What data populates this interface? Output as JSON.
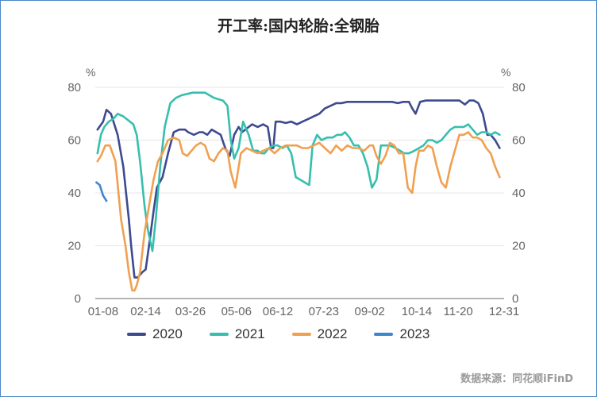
{
  "colors": {
    "2020": "#3d4a8f",
    "2021": "#36bfae",
    "2022": "#f0a050",
    "2023": "#3f86d0",
    "grid": "#e6e6e6",
    "axis": "#888888"
  },
  "source_text": "数据来源：同花顺iFinD",
  "chart_data": {
    "type": "line",
    "title": "开工率:国内轮胎:全钢胎",
    "y_unit_left": "%",
    "y_unit_right": "%",
    "ylim": [
      0,
      80
    ],
    "y_ticks": [
      0,
      20,
      40,
      60,
      80
    ],
    "x_range_days": [
      0,
      365
    ],
    "x_ticks": [
      {
        "label": "01-08",
        "day": 7
      },
      {
        "label": "02-14",
        "day": 45
      },
      {
        "label": "03-26",
        "day": 85
      },
      {
        "label": "05-06",
        "day": 126
      },
      {
        "label": "06-12",
        "day": 163
      },
      {
        "label": "07-23",
        "day": 204
      },
      {
        "label": "09-02",
        "day": 245
      },
      {
        "label": "10-14",
        "day": 287
      },
      {
        "label": "11-20",
        "day": 324
      },
      {
        "label": "12-31",
        "day": 365
      }
    ],
    "grid": true,
    "legend_position": "bottom",
    "series": [
      {
        "name": "2020",
        "x": [
          2,
          7,
          10,
          14,
          20,
          25,
          30,
          32,
          35,
          38,
          42,
          45,
          48,
          52,
          55,
          60,
          65,
          70,
          75,
          80,
          83,
          88,
          93,
          96,
          100,
          104,
          108,
          112,
          116,
          120,
          124,
          128,
          131,
          134,
          140,
          145,
          150,
          154,
          157,
          159,
          161,
          165,
          170,
          175,
          180,
          185,
          190,
          195,
          200,
          205,
          210,
          215,
          220,
          225,
          230,
          235,
          240,
          245,
          250,
          255,
          260,
          265,
          270,
          275,
          280,
          283,
          286,
          290,
          295,
          300,
          305,
          310,
          315,
          320,
          325,
          330,
          334,
          338,
          342,
          346,
          350,
          353,
          357,
          361
        ],
        "values": [
          64,
          67,
          71.5,
          70,
          62,
          50,
          30,
          20,
          8,
          8,
          10,
          11,
          20,
          33,
          42,
          46,
          55,
          63,
          64,
          64,
          63,
          62,
          63,
          63,
          62,
          64,
          63,
          62,
          57,
          54,
          62,
          65,
          63,
          64,
          66,
          65,
          66,
          65,
          57,
          57,
          67,
          67,
          66.5,
          67,
          66,
          67,
          68,
          69,
          70,
          72,
          73,
          74,
          74,
          74.5,
          74.5,
          74.5,
          74.5,
          74.5,
          74.5,
          74.5,
          74.5,
          74.5,
          74,
          74.5,
          74.5,
          72,
          70,
          74.5,
          75,
          75,
          75,
          75,
          75,
          75,
          75,
          73.5,
          75,
          75,
          74,
          70,
          62,
          62,
          60,
          57
        ]
      },
      {
        "name": "2021",
        "x": [
          2,
          5,
          8,
          12,
          16,
          20,
          25,
          28,
          31,
          34,
          37,
          40,
          44,
          47,
          51,
          54,
          58,
          62,
          67,
          72,
          77,
          82,
          87,
          92,
          95,
          98,
          102,
          106,
          110,
          114,
          118,
          121,
          124,
          128,
          132,
          137,
          141,
          145,
          148,
          151,
          155,
          159,
          163,
          167,
          171,
          175,
          179,
          183,
          187,
          191,
          194,
          198,
          202,
          207,
          212,
          216,
          220,
          223,
          227,
          231,
          235,
          239,
          243,
          247,
          251,
          255,
          259,
          263,
          268,
          272,
          276,
          280,
          285,
          289,
          293,
          297,
          301,
          305,
          309,
          313,
          317,
          321,
          325,
          329,
          333,
          337,
          341,
          345,
          349,
          353,
          357,
          361
        ],
        "values": [
          55,
          62,
          65,
          67,
          68,
          70,
          69,
          68,
          67,
          66,
          62,
          52,
          35,
          26,
          18,
          30,
          50,
          65,
          74,
          76,
          77,
          77.5,
          78,
          78,
          78,
          78,
          77,
          76,
          75.5,
          75,
          73,
          60,
          53,
          57,
          67,
          62,
          56,
          56,
          55,
          55,
          57,
          58,
          58,
          57,
          58,
          55,
          46,
          45,
          44,
          43,
          58,
          62,
          60,
          61,
          61,
          62,
          62,
          63,
          61,
          58,
          58,
          55,
          50,
          42,
          45,
          58,
          58,
          58,
          57,
          56,
          55,
          55,
          56,
          57,
          58,
          60,
          60,
          59,
          60,
          62,
          64,
          65,
          65,
          65,
          66,
          64,
          62,
          63,
          63,
          62,
          63,
          62
        ]
      },
      {
        "name": "2022",
        "x": [
          2,
          5,
          9,
          13,
          18,
          23,
          27,
          30,
          33,
          35,
          37,
          40,
          44,
          48,
          52,
          56,
          60,
          65,
          70,
          75,
          78,
          82,
          86,
          90,
          94,
          98,
          102,
          106,
          110,
          114,
          118,
          121,
          125,
          130,
          135,
          140,
          145,
          150,
          155,
          160,
          165,
          170,
          175,
          180,
          185,
          190,
          195,
          200,
          205,
          210,
          215,
          220,
          225,
          230,
          235,
          240,
          245,
          248,
          251,
          255,
          259,
          263,
          267,
          271,
          275,
          279,
          283,
          286,
          289,
          293,
          297,
          301,
          305,
          309,
          313,
          317,
          321,
          325,
          329,
          333,
          337,
          341,
          345,
          349,
          353,
          357,
          361
        ],
        "values": [
          52,
          54,
          58,
          58,
          52,
          30,
          20,
          10,
          3,
          3,
          5,
          10,
          25,
          35,
          45,
          52,
          55,
          60,
          61,
          60,
          55,
          54,
          56,
          58,
          59,
          58,
          53,
          52,
          55,
          57,
          56,
          48,
          42,
          55,
          57,
          56,
          55,
          56,
          57,
          55,
          57,
          58,
          58,
          58,
          57,
          57,
          58,
          59,
          57,
          55,
          58,
          56,
          58,
          57,
          57,
          56,
          58,
          58,
          54,
          51,
          54,
          59,
          58,
          55,
          55,
          42,
          40,
          50,
          56,
          56,
          58,
          57,
          50,
          44,
          42,
          50,
          56,
          62,
          62,
          63,
          61,
          61,
          60,
          57,
          55,
          50,
          46
        ]
      },
      {
        "name": "2023",
        "x": [
          1,
          4,
          7,
          10
        ],
        "values": [
          44,
          43,
          39,
          37
        ]
      }
    ]
  }
}
